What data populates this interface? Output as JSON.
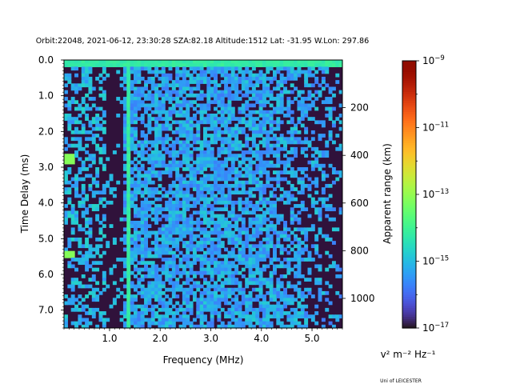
{
  "chart_data": {
    "type": "heatmap",
    "title": "Orbit:22048, 2021-06-12, 23:30:28 SZA:82.18 Altitude:1512 Lat: -31.95 W.Lon: 297.86",
    "xlabel": "Frequency (MHz)",
    "ylabel": "Time Delay (ms)",
    "y2label": "Apparent range (km)",
    "xlim": [
      0.1,
      5.6
    ],
    "ylim": [
      7.5,
      0.0
    ],
    "xticks": [
      {
        "value": 1.0,
        "label": "1.0"
      },
      {
        "value": 2.0,
        "label": "2.0"
      },
      {
        "value": 3.0,
        "label": "3.0"
      },
      {
        "value": 4.0,
        "label": "4.0"
      },
      {
        "value": 5.0,
        "label": "5.0"
      }
    ],
    "yticks": [
      {
        "value": 0.0,
        "label": "0.0"
      },
      {
        "value": 1.0,
        "label": "1.0"
      },
      {
        "value": 2.0,
        "label": "2.0"
      },
      {
        "value": 3.0,
        "label": "3.0"
      },
      {
        "value": 4.0,
        "label": "4.0"
      },
      {
        "value": 5.0,
        "label": "5.0"
      },
      {
        "value": 6.0,
        "label": "6.0"
      },
      {
        "value": 7.0,
        "label": "7.0"
      }
    ],
    "y2_km_per_ms": 149.9,
    "y2ticks": [
      {
        "value": 200,
        "label": "200"
      },
      {
        "value": 400,
        "label": "400"
      },
      {
        "value": 600,
        "label": "600"
      },
      {
        "value": 800,
        "label": "800"
      },
      {
        "value": 1000,
        "label": "1000"
      }
    ],
    "colorbar": {
      "label": "v² m⁻² Hz⁻¹",
      "scale": "log",
      "range_exp": [
        -17,
        -9
      ],
      "colormap": "turbo",
      "ticks": [
        {
          "exp": -9,
          "label": "10",
          "sup": "−9"
        },
        {
          "exp": -11,
          "label": "10",
          "sup": "−11"
        },
        {
          "exp": -13,
          "label": "10",
          "sup": "−13"
        },
        {
          "exp": -15,
          "label": "10",
          "sup": "−15"
        },
        {
          "exp": -17,
          "label": "10",
          "sup": "−17"
        }
      ]
    },
    "grid": false,
    "features": {
      "strong_vertical_line_mhz": 1.35,
      "strong_horizontal_band_ms": 0.1,
      "bright_echo_low_freq": [
        {
          "freq_mhz": 0.15,
          "delay_ms": 2.75
        },
        {
          "freq_mhz": 0.15,
          "delay_ms": 5.45
        }
      ],
      "signal_fades_above_mhz": 4.0
    }
  },
  "credit": "Uni of LEICESTER"
}
